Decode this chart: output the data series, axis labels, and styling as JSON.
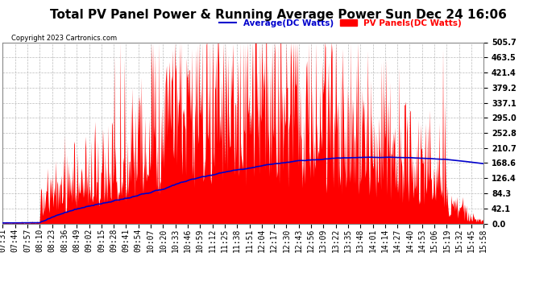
{
  "title": "Total PV Panel Power & Running Average Power Sun Dec 24 16:06",
  "copyright": "Copyright 2023 Cartronics.com",
  "legend_avg": "Average(DC Watts)",
  "legend_pv": "PV Panels(DC Watts)",
  "yticks": [
    0.0,
    42.1,
    84.3,
    126.4,
    168.6,
    210.7,
    252.8,
    295.0,
    337.1,
    379.2,
    421.4,
    463.5,
    505.7
  ],
  "ylim": [
    0.0,
    505.7
  ],
  "pv_color": "#FF0000",
  "avg_color": "#0000CC",
  "bg_color": "#FFFFFF",
  "grid_color": "#BBBBBB",
  "title_color": "#000000",
  "copyright_color": "#000000",
  "legend_avg_color": "#0000CC",
  "legend_pv_color": "#FF0000",
  "title_fontsize": 11,
  "tick_fontsize": 7,
  "ylabel_fontsize": 8
}
